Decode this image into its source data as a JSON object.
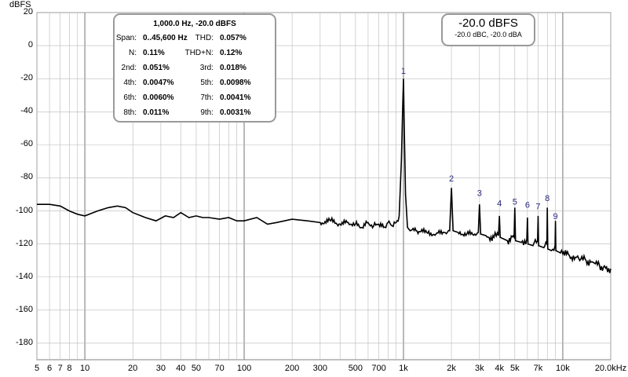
{
  "chart_data": {
    "type": "line",
    "ylabel": "dBFS",
    "ylim": [
      -190,
      20
    ],
    "xlim": [
      5,
      20000
    ],
    "x_scale": "log",
    "grid": true,
    "y_ticks": [
      "20",
      "0",
      "-20",
      "-40",
      "-60",
      "-80",
      "-100",
      "-120",
      "-140",
      "-160",
      "-180"
    ],
    "y_tick_values": [
      20,
      0,
      -20,
      -40,
      -60,
      -80,
      -100,
      -120,
      -140,
      -160,
      -180
    ],
    "x_ticks": [
      {
        "label": "5",
        "value": 5
      },
      {
        "label": "6",
        "value": 6
      },
      {
        "label": "7",
        "value": 7
      },
      {
        "label": "8",
        "value": 8
      },
      {
        "label": "10",
        "value": 10
      },
      {
        "label": "20",
        "value": 20
      },
      {
        "label": "30",
        "value": 30
      },
      {
        "label": "40",
        "value": 40
      },
      {
        "label": "50",
        "value": 50
      },
      {
        "label": "70",
        "value": 70
      },
      {
        "label": "100",
        "value": 100
      },
      {
        "label": "200",
        "value": 200
      },
      {
        "label": "300",
        "value": 300
      },
      {
        "label": "500",
        "value": 500
      },
      {
        "label": "700",
        "value": 700
      },
      {
        "label": "1k",
        "value": 1000
      },
      {
        "label": "2k",
        "value": 2000
      },
      {
        "label": "3k",
        "value": 3000
      },
      {
        "label": "4k",
        "value": 4000
      },
      {
        "label": "5k",
        "value": 5000
      },
      {
        "label": "7k",
        "value": 7000
      },
      {
        "label": "10k",
        "value": 10000
      },
      {
        "label": "20.0kHz",
        "value": 20000
      }
    ],
    "series": [
      {
        "x": [
          5,
          6,
          7,
          8,
          9,
          10,
          12,
          14,
          16,
          18,
          20,
          24,
          28,
          32,
          36,
          40,
          45,
          50,
          55,
          60,
          70,
          80,
          90,
          100,
          120,
          140,
          160,
          200,
          250,
          300,
          350,
          400,
          450,
          500,
          550,
          600,
          650,
          700,
          750,
          800,
          850,
          900,
          940,
          970,
          990,
          1000,
          1010,
          1030,
          1060,
          1100,
          1200,
          1400,
          1600,
          1800,
          1950,
          2000,
          2050,
          2200,
          2500,
          2800,
          2950,
          3000,
          3050,
          3300,
          3700,
          3950,
          4000,
          4050,
          4500,
          4950,
          5000,
          5050,
          5500,
          5950,
          6000,
          6050,
          6500,
          6950,
          7000,
          7050,
          7500,
          7950,
          8000,
          8050,
          8500,
          8950,
          9000,
          9050,
          9500,
          10000,
          11000,
          12000,
          13000,
          14000,
          15000,
          16000,
          17000,
          18000,
          20000
        ],
        "values": [
          -96,
          -96,
          -97,
          -100,
          -102,
          -103,
          -100,
          -98,
          -97,
          -98,
          -101,
          -104,
          -106,
          -103,
          -104,
          -101,
          -104,
          -103,
          -104,
          -104,
          -105,
          -104,
          -106,
          -106,
          -104,
          -108,
          -107,
          -105,
          -106,
          -107,
          -106,
          -108,
          -107,
          -108,
          -110,
          -107,
          -109,
          -108,
          -110,
          -107,
          -109,
          -107,
          -103,
          -70,
          -35,
          -20,
          -45,
          -90,
          -110,
          -112,
          -112,
          -113,
          -114,
          -113,
          -112,
          -86,
          -112,
          -113,
          -114,
          -114,
          -113,
          -96,
          -114,
          -115,
          -116,
          -115,
          -103,
          -116,
          -118,
          -116,
          -98,
          -118,
          -119,
          -117,
          -104,
          -120,
          -121,
          -118,
          -103,
          -121,
          -122,
          -120,
          -98,
          -123,
          -124,
          -121,
          -106,
          -124,
          -125,
          -126,
          -127,
          -128,
          -129,
          -130,
          -131,
          -132,
          -133,
          -134,
          -135
        ]
      }
    ],
    "harmonic_labels": [
      {
        "label": "1",
        "freq": 1000,
        "level": -18
      },
      {
        "label": "2",
        "freq": 2000,
        "level": -83
      },
      {
        "label": "3",
        "freq": 3000,
        "level": -92
      },
      {
        "label": "4",
        "freq": 4000,
        "level": -98
      },
      {
        "label": "5",
        "freq": 5000,
        "level": -97
      },
      {
        "label": "6",
        "freq": 6000,
        "level": -99
      },
      {
        "label": "7",
        "freq": 7000,
        "level": -100
      },
      {
        "label": "8",
        "freq": 8000,
        "level": -95
      },
      {
        "label": "9",
        "freq": 9000,
        "level": -106
      }
    ]
  },
  "info": {
    "title": "1,000.0 Hz, -20.0 dBFS",
    "rows": [
      {
        "l1": "Span:",
        "v1": "0..45,600 Hz",
        "l2": "THD:",
        "v2": "0.057%"
      },
      {
        "l1": "N:",
        "v1": "0.11%",
        "l2": "THD+N:",
        "v2": "0.12%"
      },
      {
        "l1": "2nd:",
        "v1": "0.051%",
        "l2": "3rd:",
        "v2": "0.018%"
      },
      {
        "l1": "4th:",
        "v1": "0.0047%",
        "l2": "5th:",
        "v2": "0.0098%"
      },
      {
        "l1": "6th:",
        "v1": "0.0060%",
        "l2": "7th:",
        "v2": "0.0041%"
      },
      {
        "l1": "8th:",
        "v1": "0.011%",
        "l2": "9th:",
        "v2": "0.0031%"
      }
    ]
  },
  "level": {
    "main": "-20.0 dBFS",
    "sub": "-20.0 dBC, -20.0 dBA"
  },
  "colors": {
    "grid": "#b8b8b8",
    "trace": "#000000",
    "harmonic_label": "#2a2a80",
    "box_border": "#9a9a9a"
  }
}
